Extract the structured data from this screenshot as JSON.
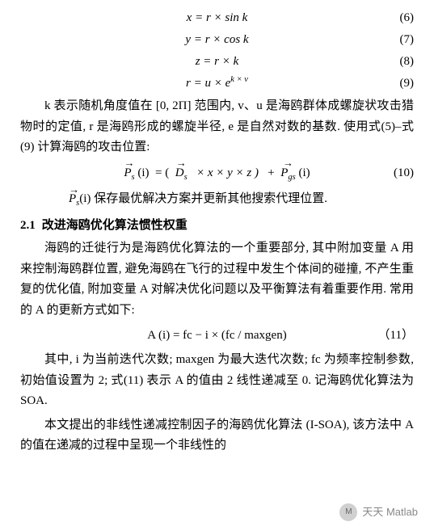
{
  "equations": {
    "eq6": {
      "body": "x = r × sin k",
      "num": "(6)"
    },
    "eq7": {
      "body": "y = r × cos k",
      "num": "(7)"
    },
    "eq8": {
      "body": "z = r × k",
      "num": "(8)"
    },
    "eq9": {
      "body_pre": "r = u × e",
      "exp": "k × v",
      "num": "(9)"
    },
    "eq10": {
      "num": "(10)"
    },
    "eq11": {
      "body": "A (i)  =  fc − i ×  (fc / maxgen)",
      "num": "（11）"
    }
  },
  "paragraphs": {
    "p1": "k 表示随机角度值在 [0, 2Π] 范围内, v、u 是海鸥群体成螺旋状攻击猎物时的定值, r 是海鸥形成的螺旋半径, e 是自然对数的基数. 使用式(5)–式(9) 计算海鸥的攻击位置:",
    "p2_suffix": " 保存最优解决方案并更新其他搜索代理位置.",
    "p3": "海鸥的迁徙行为是海鸥优化算法的一个重要部分, 其中附加变量 A 用来控制海鸥群位置, 避免海鸥在飞行的过程中发生个体间的碰撞, 不产生重复的优化值, 附加变量 A 对解决优化问题以及平衡算法有着重要作用. 常用的 A 的更新方式如下:",
    "p4": "其中, i 为当前迭代次数; maxgen 为最大迭代次数; fc 为频率控制参数, 初始值设置为 2; 式(11) 表示 A 的值由 2 线性递减至 0. 记海鸥优化算法为 SOA.",
    "p5": "本文提出的非线性递减控制因子的海鸥优化算法 (I-SOA), 该方法中 A 的值在递减的过程中呈现一个非线性的"
  },
  "section": {
    "num": "2.1",
    "title": "改进海鸥优化算法惯性权重"
  },
  "vec": {
    "Ps": "P",
    "Ps_sub": "s",
    "Ds": "D",
    "Ds_sub": "s",
    "Pgs": "P",
    "Pgs_sub": "gs",
    "arg_i": "(i)",
    "eq10_mid": "× x × y × z )",
    "eq10_open": "= (",
    "eq10_plus": "+"
  },
  "watermark": {
    "text": "天天 Matlab"
  }
}
